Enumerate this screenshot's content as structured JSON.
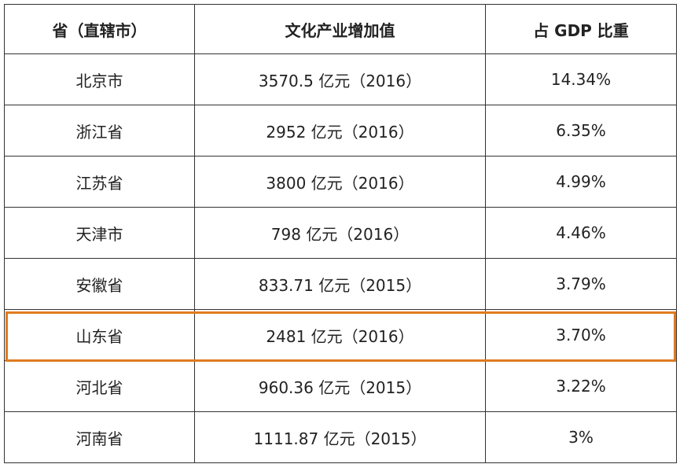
{
  "table": {
    "header": [
      "省（直辖市）",
      "文化产业增加值",
      "占 GDP 比重"
    ],
    "rows": [
      [
        "北京市",
        "3570.5 亿元（2016）",
        "14.34%"
      ],
      [
        "浙江省",
        "2952 亿元（2016）",
        "6.35%"
      ],
      [
        "江苏省",
        "3800 亿元（2016）",
        "4.99%"
      ],
      [
        "天津市",
        "798 亿元（2016）",
        "4.46%"
      ],
      [
        "安徽省",
        "833.71 亿元（2015）",
        "3.79%"
      ],
      [
        "山东省",
        "2481 亿元（2016）",
        "3.70%"
      ],
      [
        "河北省",
        "960.36 亿元（2015）",
        "3.22%"
      ],
      [
        "河南省",
        "1111.87 亿元（2015）",
        "3%"
      ]
    ]
  }
}
